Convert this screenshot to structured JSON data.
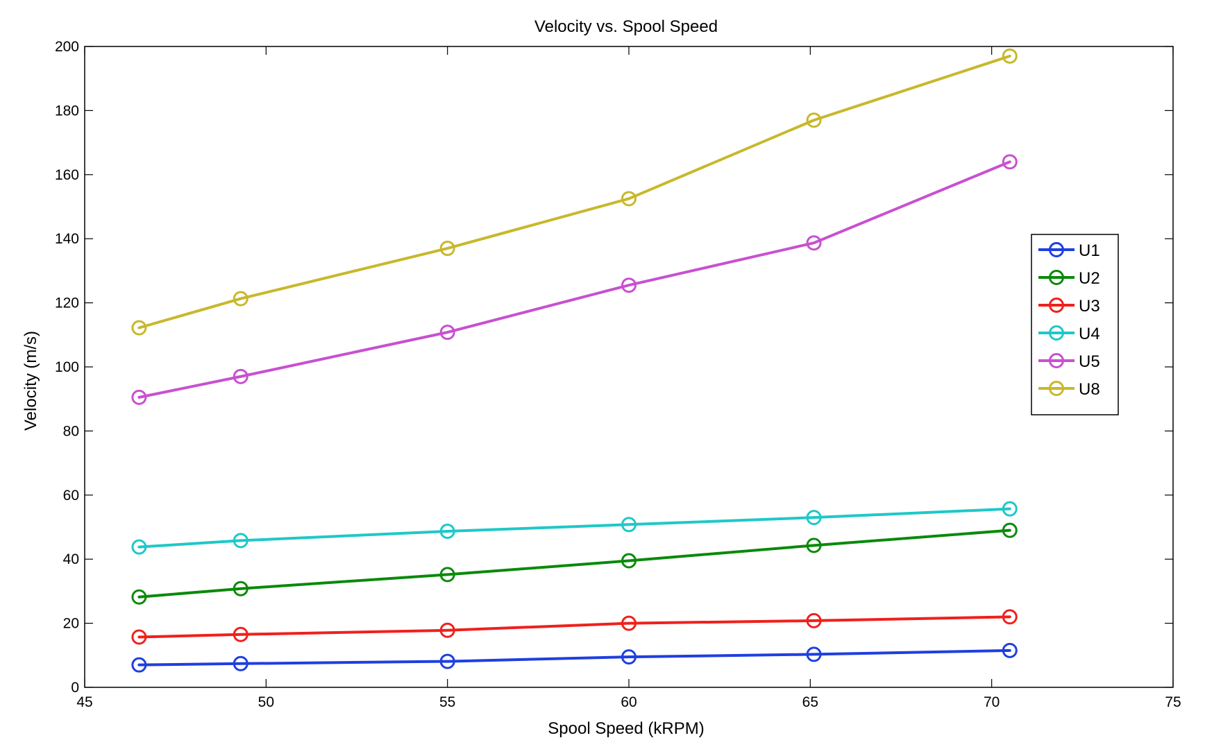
{
  "chart_data": {
    "type": "line",
    "title": "Velocity vs. Spool Speed",
    "xlabel": "Spool Speed (kRPM)",
    "ylabel": "Velocity (m/s)",
    "xlim": [
      45,
      75
    ],
    "ylim": [
      0,
      200
    ],
    "xticks": [
      "45",
      "50",
      "55",
      "60",
      "65",
      "70",
      "75"
    ],
    "yticks": [
      "0",
      "20",
      "40",
      "60",
      "80",
      "100",
      "120",
      "140",
      "160",
      "180",
      "200"
    ],
    "grid": false,
    "legend_position": "right",
    "marker": "circle",
    "x": [
      46.5,
      49.3,
      55,
      60,
      65.1,
      70.5
    ],
    "series": [
      {
        "name": "U1",
        "color": "#1f3fe0",
        "values": [
          7,
          7.4,
          8.1,
          9.5,
          10.3,
          11.5
        ]
      },
      {
        "name": "U2",
        "color": "#0a8a0a",
        "values": [
          28.2,
          30.8,
          35.2,
          39.5,
          44.3,
          49
        ]
      },
      {
        "name": "U3",
        "color": "#f0201c",
        "values": [
          15.7,
          16.5,
          17.8,
          20,
          20.8,
          22
        ]
      },
      {
        "name": "U4",
        "color": "#1fc8c8",
        "values": [
          43.8,
          45.8,
          48.7,
          50.8,
          53,
          55.7
        ]
      },
      {
        "name": "U5",
        "color": "#c850d0",
        "values": [
          90.5,
          97,
          110.8,
          125.5,
          138.7,
          164
        ]
      },
      {
        "name": "U8",
        "color": "#c8b82c",
        "values": [
          112.2,
          121.3,
          137,
          152.5,
          177,
          197
        ]
      }
    ]
  }
}
